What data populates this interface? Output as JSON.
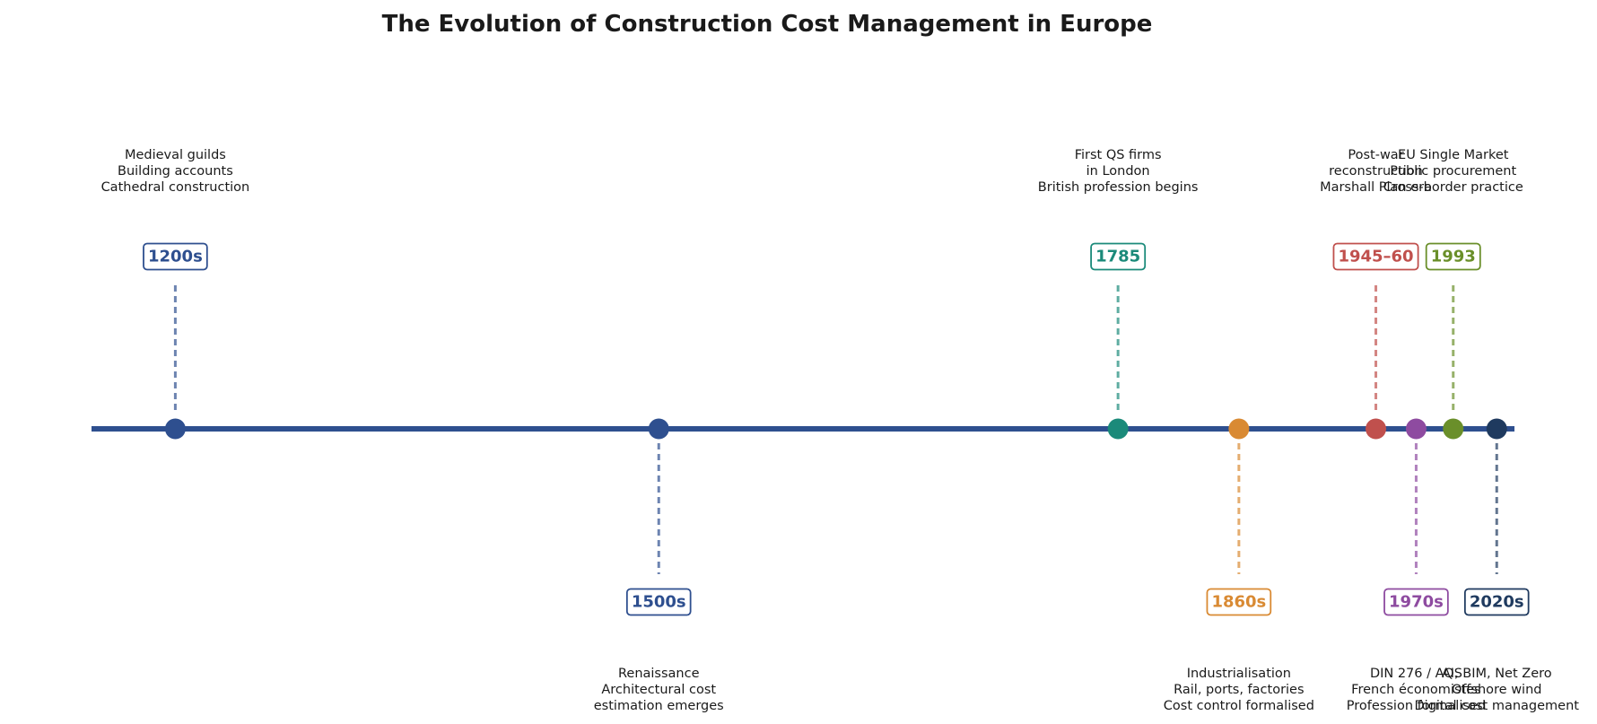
{
  "chart_data": {
    "type": "timeline",
    "title": "The Evolution of Construction Cost Management in Europe",
    "events": [
      {
        "date": "1200s",
        "year": 1200,
        "side": "above",
        "color": "#2e4f8f",
        "lines": [
          "Medieval guilds",
          "Building accounts",
          "Cathedral construction"
        ]
      },
      {
        "date": "1500s",
        "year": 1500,
        "side": "below",
        "color": "#2e4f8f",
        "lines": [
          "Renaissance",
          "Architectural cost",
          "estimation emerges"
        ]
      },
      {
        "date": "1785",
        "year": 1785,
        "side": "above",
        "color": "#1b8a7a",
        "lines": [
          "First QS firms",
          "in London",
          "British profession begins"
        ]
      },
      {
        "date": "1860s",
        "year": 1860,
        "side": "below",
        "color": "#d98a33",
        "lines": [
          "Industrialisation",
          "Rail, ports, factories",
          "Cost control formalised"
        ]
      },
      {
        "date": "1945–60",
        "year": 1945,
        "side": "above",
        "color": "#c0504d",
        "lines": [
          "Post-war",
          "reconstruction",
          "Marshall Plan era"
        ]
      },
      {
        "date": "1970s",
        "year": 1970,
        "side": "below",
        "color": "#8e4ba0",
        "lines": [
          "DIN 276 / AQS",
          "French économistes",
          "Profession formalised"
        ]
      },
      {
        "date": "1993",
        "year": 1993,
        "side": "above",
        "color": "#6a8f2a",
        "lines": [
          "EU Single Market",
          "Public procurement",
          "Cross-border practice"
        ]
      },
      {
        "date": "2020s",
        "year": 2020,
        "side": "below",
        "color": "#1f3a5f",
        "lines": [
          "AI, BIM, Net Zero",
          "Offshore wind",
          "Digital cost management"
        ]
      }
    ],
    "axis_color": "#2e4f8f",
    "xlim": [
      1148,
      2031
    ]
  }
}
